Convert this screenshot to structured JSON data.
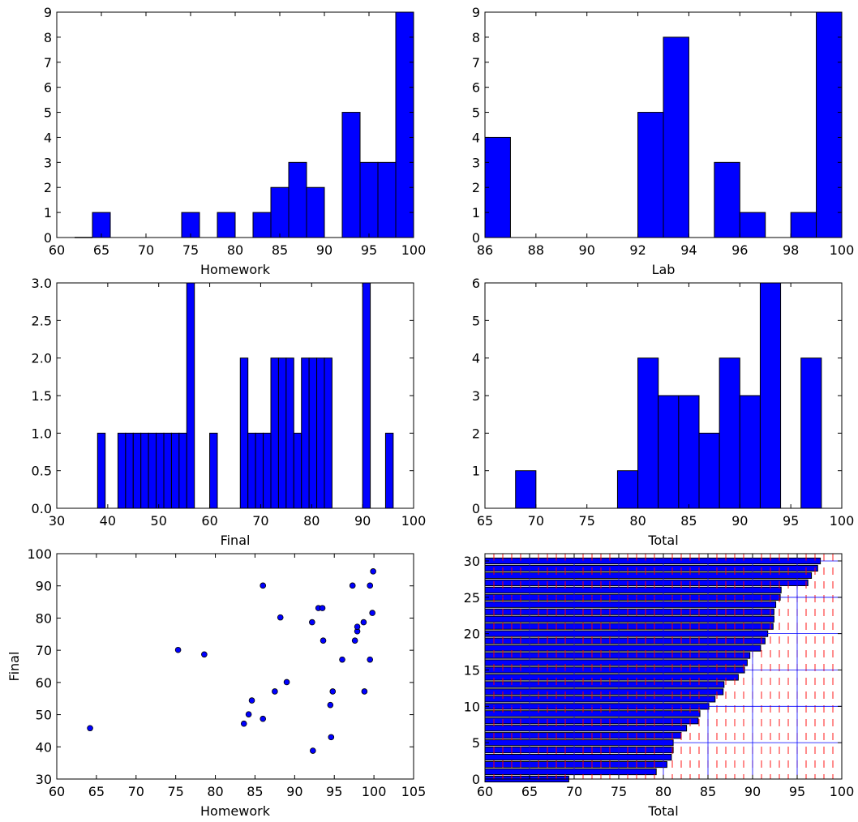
{
  "chart_data": [
    {
      "type": "bar",
      "xlabel": "Homework",
      "ylabel": "",
      "xlim": [
        60,
        100
      ],
      "ylim": [
        0,
        9
      ],
      "xticks": [
        "60",
        "65",
        "70",
        "75",
        "80",
        "85",
        "90",
        "95",
        "100"
      ],
      "yticks": [
        "0",
        "1",
        "2",
        "3",
        "4",
        "5",
        "6",
        "7",
        "8",
        "9"
      ],
      "bins": [
        {
          "x0": 62,
          "x1": 64,
          "value": 0
        },
        {
          "x0": 64,
          "x1": 66,
          "value": 1
        },
        {
          "x0": 74,
          "x1": 76,
          "value": 1
        },
        {
          "x0": 78,
          "x1": 80,
          "value": 1
        },
        {
          "x0": 82,
          "x1": 84,
          "value": 1
        },
        {
          "x0": 84,
          "x1": 86,
          "value": 2
        },
        {
          "x0": 86,
          "x1": 88,
          "value": 3
        },
        {
          "x0": 88,
          "x1": 90,
          "value": 2
        },
        {
          "x0": 92,
          "x1": 94,
          "value": 5
        },
        {
          "x0": 94,
          "x1": 96,
          "value": 3
        },
        {
          "x0": 96,
          "x1": 98,
          "value": 3
        },
        {
          "x0": 98,
          "x1": 100,
          "value": 9
        }
      ]
    },
    {
      "type": "bar",
      "xlabel": "Lab",
      "ylabel": "",
      "xlim": [
        86,
        100
      ],
      "ylim": [
        0,
        9
      ],
      "xticks": [
        "86",
        "88",
        "90",
        "92",
        "94",
        "96",
        "98",
        "100"
      ],
      "yticks": [
        "0",
        "1",
        "2",
        "3",
        "4",
        "5",
        "6",
        "7",
        "8",
        "9"
      ],
      "bins": [
        {
          "x0": 86,
          "x1": 87,
          "value": 4
        },
        {
          "x0": 92,
          "x1": 93,
          "value": 5
        },
        {
          "x0": 93,
          "x1": 94,
          "value": 8
        },
        {
          "x0": 95,
          "x1": 96,
          "value": 3
        },
        {
          "x0": 96,
          "x1": 97,
          "value": 1
        },
        {
          "x0": 98,
          "x1": 99,
          "value": 1
        },
        {
          "x0": 99,
          "x1": 100,
          "value": 9
        }
      ]
    },
    {
      "type": "bar",
      "xlabel": "Final",
      "ylabel": "",
      "xlim": [
        30,
        100
      ],
      "ylim": [
        0,
        3
      ],
      "xticks": [
        "30",
        "40",
        "50",
        "60",
        "70",
        "80",
        "90",
        "100"
      ],
      "yticks": [
        "0.0",
        "0.5",
        "1.0",
        "1.5",
        "2.0",
        "2.5",
        "3.0"
      ],
      "bins": [
        {
          "x0": 38,
          "x1": 39.5,
          "value": 1
        },
        {
          "x0": 42,
          "x1": 43.5,
          "value": 1
        },
        {
          "x0": 43.5,
          "x1": 45,
          "value": 1
        },
        {
          "x0": 45,
          "x1": 46.5,
          "value": 1
        },
        {
          "x0": 46.5,
          "x1": 48,
          "value": 1
        },
        {
          "x0": 48,
          "x1": 49.5,
          "value": 1
        },
        {
          "x0": 49.5,
          "x1": 51,
          "value": 1
        },
        {
          "x0": 51,
          "x1": 52.5,
          "value": 1
        },
        {
          "x0": 52.5,
          "x1": 54,
          "value": 1
        },
        {
          "x0": 54,
          "x1": 55.5,
          "value": 1
        },
        {
          "x0": 55.5,
          "x1": 57,
          "value": 3
        },
        {
          "x0": 60,
          "x1": 61.5,
          "value": 1
        },
        {
          "x0": 66,
          "x1": 67.5,
          "value": 2
        },
        {
          "x0": 67.5,
          "x1": 69,
          "value": 1
        },
        {
          "x0": 69,
          "x1": 70.5,
          "value": 1
        },
        {
          "x0": 70.5,
          "x1": 72,
          "value": 1
        },
        {
          "x0": 72,
          "x1": 73.5,
          "value": 2
        },
        {
          "x0": 73.5,
          "x1": 75,
          "value": 2
        },
        {
          "x0": 75,
          "x1": 76.5,
          "value": 2
        },
        {
          "x0": 76.5,
          "x1": 78,
          "value": 1
        },
        {
          "x0": 78,
          "x1": 79.5,
          "value": 2
        },
        {
          "x0": 79.5,
          "x1": 81,
          "value": 2
        },
        {
          "x0": 81,
          "x1": 82.5,
          "value": 2
        },
        {
          "x0": 82.5,
          "x1": 84,
          "value": 2
        },
        {
          "x0": 90,
          "x1": 91.5,
          "value": 3
        },
        {
          "x0": 94.5,
          "x1": 96,
          "value": 1
        }
      ]
    },
    {
      "type": "bar",
      "xlabel": "Total",
      "ylabel": "",
      "xlim": [
        65,
        100
      ],
      "ylim": [
        0,
        6
      ],
      "xticks": [
        "65",
        "70",
        "75",
        "80",
        "85",
        "90",
        "95",
        "100"
      ],
      "yticks": [
        "0",
        "1",
        "2",
        "3",
        "4",
        "5",
        "6"
      ],
      "bins": [
        {
          "x0": 68,
          "x1": 70,
          "value": 1
        },
        {
          "x0": 78,
          "x1": 80,
          "value": 1
        },
        {
          "x0": 80,
          "x1": 82,
          "value": 4
        },
        {
          "x0": 82,
          "x1": 84,
          "value": 3
        },
        {
          "x0": 84,
          "x1": 86,
          "value": 3
        },
        {
          "x0": 86,
          "x1": 88,
          "value": 2
        },
        {
          "x0": 88,
          "x1": 90,
          "value": 4
        },
        {
          "x0": 90,
          "x1": 92,
          "value": 3
        },
        {
          "x0": 92,
          "x1": 94,
          "value": 6
        },
        {
          "x0": 96,
          "x1": 98,
          "value": 4
        }
      ]
    },
    {
      "type": "scatter",
      "xlabel": "Homework",
      "ylabel": "Final",
      "xlim": [
        60,
        105
      ],
      "ylim": [
        30,
        100
      ],
      "xticks": [
        "60",
        "65",
        "70",
        "75",
        "80",
        "85",
        "90",
        "95",
        "100",
        "105"
      ],
      "yticks": [
        "30",
        "40",
        "50",
        "60",
        "70",
        "80",
        "90",
        "100"
      ],
      "points": [
        [
          64.2,
          45.8
        ],
        [
          75.3,
          70.1
        ],
        [
          78.6,
          68.7
        ],
        [
          83.6,
          47.2
        ],
        [
          84.2,
          50.1
        ],
        [
          84.6,
          54.4
        ],
        [
          86.0,
          48.7
        ],
        [
          86.0,
          90.1
        ],
        [
          87.5,
          57.2
        ],
        [
          88.2,
          80.2
        ],
        [
          89.0,
          60.1
        ],
        [
          92.2,
          78.7
        ],
        [
          92.3,
          38.8
        ],
        [
          93.0,
          83.1
        ],
        [
          93.5,
          83.1
        ],
        [
          93.6,
          73.0
        ],
        [
          94.5,
          53.0
        ],
        [
          94.6,
          43.0
        ],
        [
          94.8,
          57.2
        ],
        [
          96.0,
          67.1
        ],
        [
          97.3,
          90.1
        ],
        [
          97.6,
          73.0
        ],
        [
          97.9,
          75.9
        ],
        [
          97.9,
          77.3
        ],
        [
          98.7,
          78.7
        ],
        [
          98.8,
          57.2
        ],
        [
          99.5,
          90.1
        ],
        [
          99.5,
          67.1
        ],
        [
          99.8,
          81.6
        ],
        [
          99.9,
          94.5
        ]
      ]
    },
    {
      "type": "bar",
      "orientation": "horizontal",
      "xlabel": "Total",
      "ylabel": "",
      "xlim": [
        60,
        100
      ],
      "ylim": [
        0,
        31
      ],
      "xticks": [
        "60",
        "65",
        "70",
        "75",
        "80",
        "85",
        "90",
        "95",
        "100"
      ],
      "yticks": [
        "0",
        "5",
        "10",
        "15",
        "20",
        "25",
        "30"
      ],
      "grid": true,
      "values": [
        69.4,
        79.2,
        80.4,
        80.9,
        81.1,
        81.1,
        82.0,
        82.6,
        83.9,
        84.1,
        85.1,
        85.8,
        86.7,
        86.8,
        88.4,
        89.1,
        89.4,
        89.7,
        90.9,
        91.4,
        91.7,
        92.3,
        92.4,
        92.4,
        92.6,
        93.1,
        93.2,
        96.2,
        96.6,
        97.3,
        97.6
      ],
      "dashed_marks": [
        61,
        62,
        63,
        64,
        65,
        66,
        67,
        68,
        69,
        70,
        71,
        72,
        73,
        74,
        75,
        76,
        77,
        78,
        79,
        80,
        81,
        82,
        83,
        84,
        85,
        86,
        87,
        88,
        89,
        90,
        91,
        92,
        93,
        94,
        95,
        96,
        97,
        98,
        99
      ]
    }
  ],
  "colors": {
    "bar": "#0000ff",
    "edge": "#000000",
    "grid": "#0000ff",
    "dash": "#ff0000"
  }
}
